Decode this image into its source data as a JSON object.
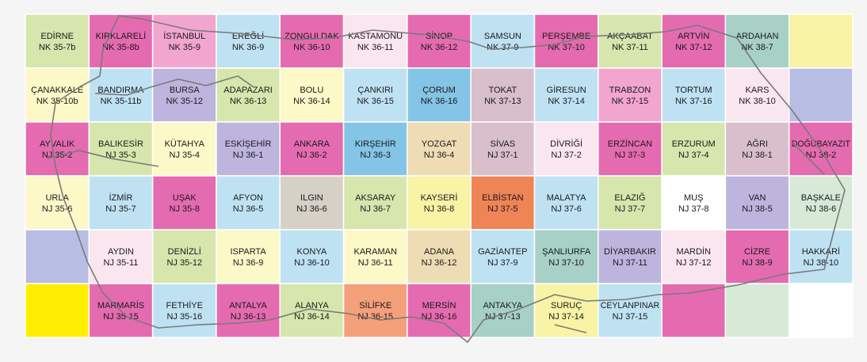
{
  "map": {
    "colors": {
      "green": "#d6e6ad",
      "pink": "#f2a6cf",
      "magenta": "#e56bb0",
      "blue": "#bfe2f3",
      "skyblue": "#84c4e6",
      "lavender": "#bdb5de",
      "periwinkle": "#b8bde3",
      "cream": "#fdf8c8",
      "yellow": "#f8f3a5",
      "wheat": "#eedcb4",
      "tan": "#e4cfa8",
      "grey": "#d6d1c7",
      "mauve": "#d8bfcb",
      "teal": "#a7d0c6",
      "salmon": "#f4a07a",
      "orange": "#ef8456",
      "pale": "#fae6ef",
      "mint": "#d7ead8",
      "brightyellow": "#ffee00",
      "white": "#ffffff"
    },
    "rows": [
      [
        {
          "name": "EDİRNE",
          "code": "NK 35-7b",
          "color": "green"
        },
        {
          "name": "KIRKLARELİ",
          "code": "NK 35-8b",
          "color": "magenta"
        },
        {
          "name": "İSTANBUL",
          "code": "NK 35-9",
          "color": "pink"
        },
        {
          "name": "EREĞLİ",
          "code": "NK 36-9",
          "color": "blue"
        },
        {
          "name": "ZONGULDAK",
          "code": "NK 36-10",
          "color": "magenta"
        },
        {
          "name": "KASTAMONU",
          "code": "NK 36-11",
          "color": "pale"
        },
        {
          "name": "SİNOP",
          "code": "NK 36-12",
          "color": "magenta"
        },
        {
          "name": "SAMSUN",
          "code": "NK 37-9",
          "color": "blue"
        },
        {
          "name": "PERŞEMBE",
          "code": "NK 37-10",
          "color": "magenta"
        },
        {
          "name": "AKÇAABAT",
          "code": "NK 37-11",
          "color": "green"
        },
        {
          "name": "ARTVİN",
          "code": "NK 37-12",
          "color": "magenta"
        },
        {
          "name": "ARDAHAN",
          "code": "NK 38-7",
          "color": "teal"
        },
        {
          "name": "",
          "code": "",
          "color": "yellow"
        }
      ],
      [
        {
          "name": "ÇANAKKALE",
          "code": "NK 35-10b",
          "color": "cream"
        },
        {
          "name": "BANDIRMA",
          "code": "NK 35-11b",
          "color": "blue"
        },
        {
          "name": "BURSA",
          "code": "NK 35-12",
          "color": "lavender"
        },
        {
          "name": "ADAPAZARI",
          "code": "NK 36-13",
          "color": "green"
        },
        {
          "name": "BOLU",
          "code": "NK 36-14",
          "color": "cream"
        },
        {
          "name": "ÇANKIRI",
          "code": "NK 36-15",
          "color": "blue"
        },
        {
          "name": "ÇORUM",
          "code": "NK 36-16",
          "color": "skyblue"
        },
        {
          "name": "TOKAT",
          "code": "NK 37-13",
          "color": "mauve"
        },
        {
          "name": "GİRESUN",
          "code": "NK 37-14",
          "color": "blue"
        },
        {
          "name": "TRABZON",
          "code": "NK 37-15",
          "color": "pink"
        },
        {
          "name": "TORTUM",
          "code": "NK 37-16",
          "color": "blue"
        },
        {
          "name": "KARS",
          "code": "NK 38-10",
          "color": "pale"
        },
        {
          "name": "",
          "code": "",
          "color": "periwinkle"
        }
      ],
      [
        {
          "name": "AYVALIK",
          "code": "NJ 35-2",
          "color": "magenta"
        },
        {
          "name": "BALIKESİR",
          "code": "NJ 35-3",
          "color": "green"
        },
        {
          "name": "KÜTAHYA",
          "code": "NJ 35-4",
          "color": "cream"
        },
        {
          "name": "ESKİŞEHİR",
          "code": "NJ 36-1",
          "color": "lavender"
        },
        {
          "name": "ANKARA",
          "code": "NJ 36-2",
          "color": "magenta"
        },
        {
          "name": "KIRŞEHİR",
          "code": "NJ 36-3",
          "color": "skyblue"
        },
        {
          "name": "YOZGAT",
          "code": "NJ 36-4",
          "color": "wheat"
        },
        {
          "name": "SİVAS",
          "code": "NJ 37-1",
          "color": "mauve"
        },
        {
          "name": "DİVRİĞİ",
          "code": "NJ 37-2",
          "color": "pale"
        },
        {
          "name": "ERZİNCAN",
          "code": "NJ 37-3",
          "color": "magenta"
        },
        {
          "name": "ERZURUM",
          "code": "NJ 37-4",
          "color": "green"
        },
        {
          "name": "AĞRI",
          "code": "NJ 38-1",
          "color": "mauve"
        },
        {
          "name": "DOĞUBAYAZIT",
          "code": "NJ 38-2",
          "color": "magenta"
        }
      ],
      [
        {
          "name": "URLA",
          "code": "NJ 35-6",
          "color": "cream"
        },
        {
          "name": "İZMİR",
          "code": "NJ 35-7",
          "color": "blue"
        },
        {
          "name": "UŞAK",
          "code": "NJ 35-8",
          "color": "magenta"
        },
        {
          "name": "AFYON",
          "code": "NJ 36-5",
          "color": "blue"
        },
        {
          "name": "ILGIN",
          "code": "NJ 36-6",
          "color": "grey"
        },
        {
          "name": "AKSARAY",
          "code": "NJ 36-7",
          "color": "green"
        },
        {
          "name": "KAYSERİ",
          "code": "NJ 36-8",
          "color": "yellow"
        },
        {
          "name": "ELBİSTAN",
          "code": "NJ 37-5",
          "color": "orange"
        },
        {
          "name": "MALATYA",
          "code": "NJ 37-6",
          "color": "blue"
        },
        {
          "name": "ELAZIĞ",
          "code": "NJ 37-7",
          "color": "green"
        },
        {
          "name": "MUŞ",
          "code": "NJ 37-8",
          "color": "white"
        },
        {
          "name": "VAN",
          "code": "NJ 38-5",
          "color": "lavender"
        },
        {
          "name": "BAŞKALE",
          "code": "NJ 38-6",
          "color": "mint"
        }
      ],
      [
        {
          "name": "",
          "code": "",
          "color": "periwinkle"
        },
        {
          "name": "AYDIN",
          "code": "NJ 35-11",
          "color": "pale"
        },
        {
          "name": "DENİZLİ",
          "code": "NJ 35-12",
          "color": "green"
        },
        {
          "name": "ISPARTA",
          "code": "NJ 36-9",
          "color": "cream"
        },
        {
          "name": "KONYA",
          "code": "NJ 36-10",
          "color": "blue"
        },
        {
          "name": "KARAMAN",
          "code": "NJ 36-11",
          "color": "cream"
        },
        {
          "name": "ADANA",
          "code": "NJ 36-12",
          "color": "wheat"
        },
        {
          "name": "GAZİANTEP",
          "code": "NJ 37-9",
          "color": "blue"
        },
        {
          "name": "ŞANLIURFA",
          "code": "NJ 37-10",
          "color": "teal"
        },
        {
          "name": "DİYARBAKIR",
          "code": "NJ 37-11",
          "color": "lavender"
        },
        {
          "name": "MARDİN",
          "code": "NJ 37-12",
          "color": "pale"
        },
        {
          "name": "CİZRE",
          "code": "NJ 38-9",
          "color": "magenta"
        },
        {
          "name": "HAKKARİ",
          "code": "NJ 38-10",
          "color": "blue"
        }
      ],
      [
        {
          "name": "",
          "code": "",
          "color": "brightyellow"
        },
        {
          "name": "MARMARİS",
          "code": "NJ 35-15",
          "color": "magenta"
        },
        {
          "name": "FETHİYE",
          "code": "NJ 35-16",
          "color": "blue"
        },
        {
          "name": "ANTALYA",
          "code": "NJ 36-13",
          "color": "magenta"
        },
        {
          "name": "ALANYA",
          "code": "NJ 36-14",
          "color": "green"
        },
        {
          "name": "SİLİFKE",
          "code": "NJ 36-15",
          "color": "salmon"
        },
        {
          "name": "MERSİN",
          "code": "NJ 36-16",
          "color": "magenta"
        },
        {
          "name": "ANTAKYA",
          "code": "NJ 37-13",
          "color": "teal"
        },
        {
          "name": "SURUÇ",
          "code": "NJ 37-14",
          "color": "yellow"
        },
        {
          "name": "CEYLANPINAR",
          "code": "NJ 37-15",
          "color": "blue"
        },
        {
          "name": "",
          "code": "",
          "color": "magenta"
        },
        {
          "name": "",
          "code": "",
          "color": "mint"
        },
        {
          "name": "",
          "code": "",
          "color": "white"
        }
      ]
    ]
  }
}
